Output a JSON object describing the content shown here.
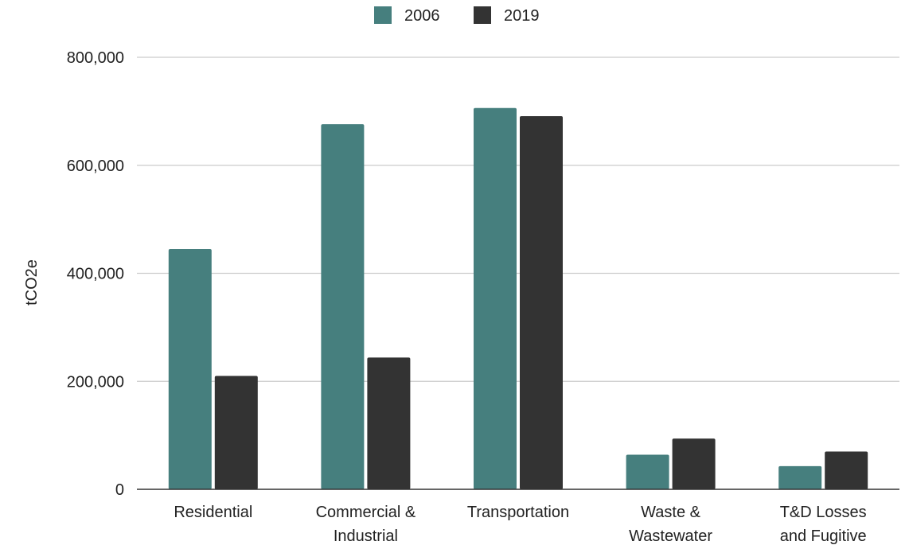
{
  "chart_data": {
    "type": "bar",
    "title": "",
    "xlabel": "",
    "ylabel": "tCO2e",
    "ylim": [
      0,
      800000
    ],
    "yticks": [
      0,
      200000,
      400000,
      600000,
      800000
    ],
    "ytick_labels": [
      "0",
      "200,000",
      "400,000",
      "600,000",
      "800,000"
    ],
    "grid": true,
    "legend_position": "top-center",
    "categories": [
      [
        "Residential"
      ],
      [
        "Commercial &",
        "Industrial"
      ],
      [
        "Transportation"
      ],
      [
        "Waste &",
        "Wastewater"
      ],
      [
        "T&D Losses",
        "and Fugitive"
      ]
    ],
    "series": [
      {
        "name": "2006",
        "color": "#467f7e",
        "values": [
          445000,
          676000,
          706000,
          64000,
          43000
        ]
      },
      {
        "name": "2019",
        "color": "#333333",
        "values": [
          210000,
          244000,
          691000,
          94000,
          70000
        ]
      }
    ],
    "colors": {
      "grid": "#cccccc",
      "baseline": "#333333",
      "text": "#222222"
    }
  }
}
